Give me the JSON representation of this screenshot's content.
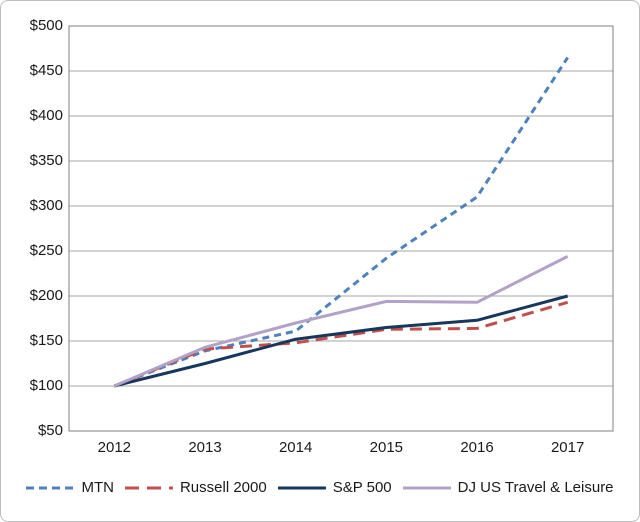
{
  "chart_data": {
    "type": "line",
    "title": "",
    "categories": [
      "2012",
      "2013",
      "2014",
      "2015",
      "2016",
      "2017"
    ],
    "series": [
      {
        "name": "MTN",
        "values": [
          100,
          139,
          161,
          242,
          310,
          465
        ],
        "color": "#4F81BD",
        "dash": "7 5",
        "legend_dash": "8 5"
      },
      {
        "name": "Russell 2000",
        "values": [
          100,
          141,
          148,
          163,
          164,
          193
        ],
        "color": "#C0504D",
        "dash": "12 7",
        "legend_dash": "14 8"
      },
      {
        "name": "S&P 500",
        "values": [
          100,
          125,
          152,
          165,
          173,
          200
        ],
        "color": "#17375D",
        "dash": "",
        "legend_dash": ""
      },
      {
        "name": "DJ US Travel & Leisure",
        "values": [
          100,
          143,
          170,
          194,
          193,
          244
        ],
        "color": "#B3A2C7",
        "dash": "",
        "legend_dash": ""
      }
    ],
    "y_axis": {
      "min": 50,
      "max": 500,
      "step": 50,
      "tick_labels_top_to_bottom": [
        "$500",
        "$450",
        "$400",
        "$350",
        "$300",
        "$250",
        "$200",
        "$150",
        "$100",
        "$50"
      ]
    },
    "x_axis": {
      "tick_labels": [
        "2012",
        "2013",
        "2014",
        "2015",
        "2016",
        "2017"
      ]
    },
    "grid": true,
    "legend_position": "bottom",
    "gridline_color": "#A6A6A6",
    "plot_border_color": "#808080",
    "ylim": [
      50,
      500
    ]
  }
}
